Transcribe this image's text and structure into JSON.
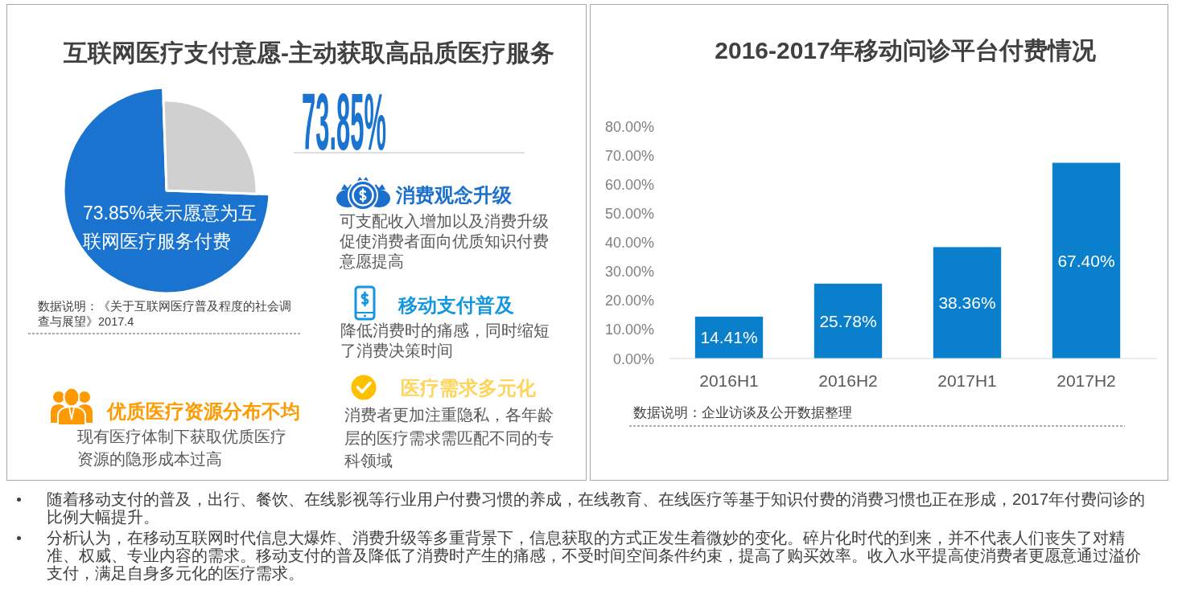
{
  "chart_data": [
    {
      "type": "pie",
      "title": "互联网医疗支付意愿-主动获取高品质医疗服务",
      "categories": [
        null,
        null
      ],
      "values": [
        73.85,
        26.15
      ],
      "colors": [
        "#1a73cf",
        "#d0d0d0"
      ],
      "annotations": [
        "73.85%",
        "73.85%表示愿意为互联网医疗服务付费",
        "数据说明：《关于互联网医疗普及程度的社会调查与展望》2017.4"
      ]
    },
    {
      "type": "other",
      "annotations": [
        "消费观念升级",
        "可支配收入增加以及消费升级促使消费者面向优质知识付费意愿提高",
        "移动支付普及",
        "降低消费时的痛感，同时缩短了消费决策时间",
        "优质医疗资源分布不均",
        "现有医疗体制下获取优质医疗资源的隐形成本过高",
        "医疗需求多元化",
        "消费者更加注重隐私，各年龄层的医疗需求需匹配不同的专科领域"
      ]
    },
    {
      "type": "bar",
      "title": "2016-2017年移动问诊平台付费情况",
      "categories": [
        "2016H1",
        "2016H2",
        "2017H1",
        "2017H2"
      ],
      "values": [
        14.41,
        25.78,
        38.36,
        67.4
      ],
      "color": "#0a7fcc",
      "value_labels": [
        "14.41%",
        "25.78%",
        "38.36%",
        "67.40%"
      ],
      "ylim": [
        0,
        80
      ],
      "yticks": [
        {
          "value": 0,
          "label": "0.00%"
        },
        {
          "value": 10,
          "label": "10.00%"
        },
        {
          "value": 20,
          "label": "20.00%"
        },
        {
          "value": 30,
          "label": "30.00%"
        },
        {
          "value": 40,
          "label": "40.00%"
        },
        {
          "value": 50,
          "label": "50.00%"
        },
        {
          "value": 60,
          "label": "60.00%"
        },
        {
          "value": 70,
          "label": "70.00%"
        },
        {
          "value": 80,
          "label": "80.00%"
        }
      ],
      "annotations": [
        "数据说明：企业访谈及公开数据整理"
      ]
    },
    {
      "type": "other",
      "annotations": [
        "随着移动支付的普及，出行、餐饮、在线影视等行业用户付费习惯的养成，在线教育、在线医疗等基于知识付费的消费习惯也正在形成，2017年付费问诊的比例大幅提升。",
        "分析认为，在移动互联网时代信息大爆炸、消费升级等多重背景下，信息获取的方式正发生着微妙的变化。碎片化时代的到来，并不代表人们丧失了对精准、权威、专业内容的需求。移动支付的普及降低了消费时产生的痛感，不受时间空间条件约束，提高了购买效率。收入水平提高使消费者更愿意通过溢价支付，满足自身多元化的医疗需求。"
      ]
    }
  ]
}
